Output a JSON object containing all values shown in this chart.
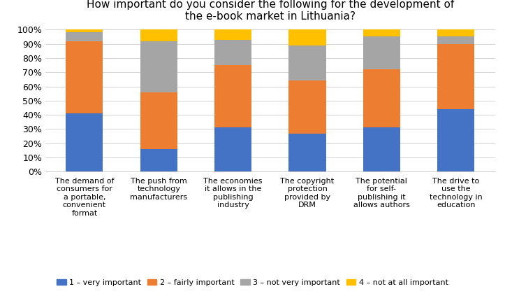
{
  "title": "How important do you consider the following for the development of\nthe e-book market in Lithuania?",
  "categories": [
    "The demand of\nconsumers for\na portable,\nconvenient\nformat",
    "The push from\ntechnology\nmanufacturers",
    "The economies\nit allows in the\npublishing\nindustry",
    "The copyright\nprotection\nprovided by\nDRM",
    "The potential\nfor self-\npublishing it\nallows authors",
    "The drive to\nuse the\ntechnology in\neducation"
  ],
  "series": {
    "1 – very important": [
      41,
      16,
      31,
      27,
      31,
      44
    ],
    "2 – fairly important": [
      51,
      40,
      44,
      37,
      41,
      46
    ],
    "3 – not very important": [
      6,
      36,
      18,
      25,
      23,
      5
    ],
    "4 – not at all important": [
      2,
      8,
      7,
      11,
      5,
      5
    ]
  },
  "colors": {
    "1 – very important": "#4472C4",
    "2 – fairly important": "#ED7D31",
    "3 – not very important": "#A5A5A5",
    "4 – not at all important": "#FFC000"
  },
  "ylim": [
    0,
    100
  ],
  "yticks": [
    0,
    10,
    20,
    30,
    40,
    50,
    60,
    70,
    80,
    90,
    100
  ],
  "ytick_labels": [
    "0%",
    "10%",
    "20%",
    "30%",
    "40%",
    "50%",
    "60%",
    "70%",
    "80%",
    "90%",
    "100%"
  ],
  "background_color": "#FFFFFF",
  "title_fontsize": 11,
  "xlabel_fontsize": 8,
  "ytick_fontsize": 9,
  "legend_fontsize": 8,
  "bar_width": 0.5
}
